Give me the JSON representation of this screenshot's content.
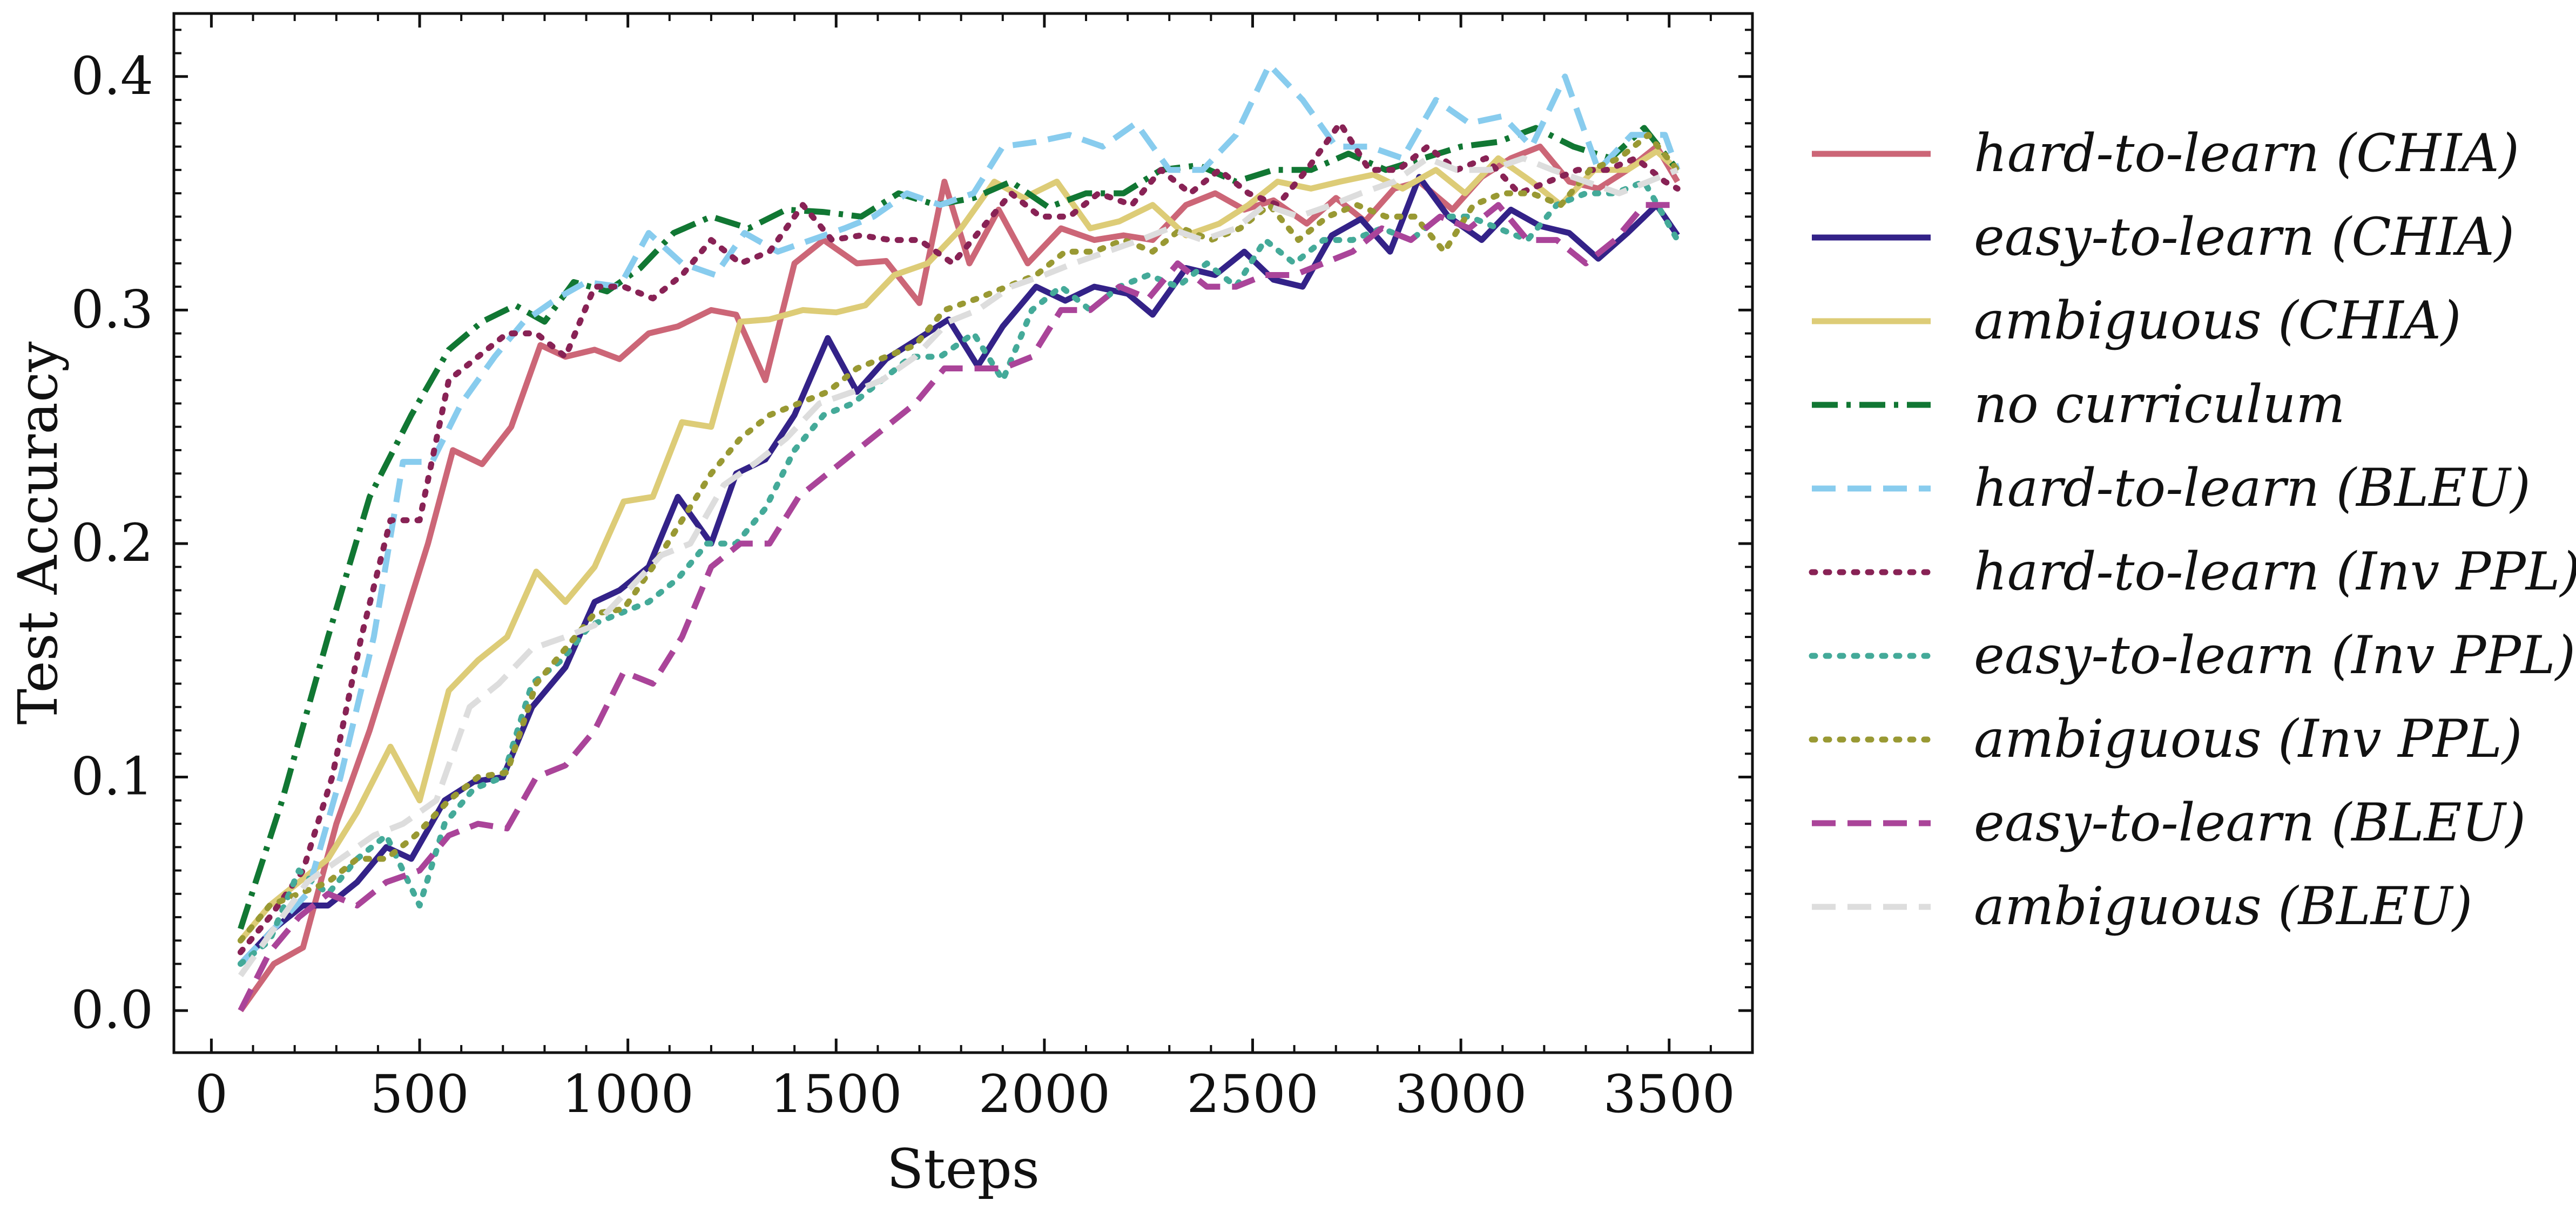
{
  "chart_data": {
    "type": "line",
    "xlabel": "Steps",
    "ylabel": "Test Accuracy",
    "xlim": [
      -90,
      3700
    ],
    "ylim": [
      -0.018,
      0.427
    ],
    "x_ticks": [
      0,
      500,
      1000,
      1500,
      2000,
      2500,
      3000,
      3500
    ],
    "x_tick_labels": [
      "0",
      "500",
      "1000",
      "1500",
      "2000",
      "2500",
      "3000",
      "3500"
    ],
    "y_ticks": [
      0.0,
      0.1,
      0.2,
      0.3,
      0.4
    ],
    "y_tick_labels": [
      "0.0",
      "0.1",
      "0.2",
      "0.3",
      "0.4"
    ],
    "grid": false,
    "legend_position": "right, outside plot",
    "series": [
      {
        "name": "hard-to-learn (CHIA)",
        "color": "#CC6677",
        "dash": "solid",
        "x": [
          70,
          150,
          220,
          300,
          380,
          450,
          520,
          580,
          650,
          720,
          790,
          850,
          920,
          980,
          1050,
          1120,
          1200,
          1260,
          1330,
          1400,
          1470,
          1550,
          1620,
          1700,
          1760,
          1820,
          1890,
          1960,
          2040,
          2120,
          2190,
          2260,
          2340,
          2410,
          2480,
          2550,
          2630,
          2700,
          2770,
          2840,
          2900,
          2980,
          3050,
          3120,
          3190,
          3260,
          3330,
          3400,
          3470,
          3520
        ],
        "y": [
          0.0,
          0.02,
          0.027,
          0.08,
          0.12,
          0.16,
          0.2,
          0.24,
          0.234,
          0.25,
          0.285,
          0.28,
          0.283,
          0.279,
          0.29,
          0.293,
          0.3,
          0.298,
          0.27,
          0.32,
          0.33,
          0.32,
          0.321,
          0.303,
          0.355,
          0.32,
          0.343,
          0.32,
          0.335,
          0.33,
          0.332,
          0.33,
          0.345,
          0.35,
          0.343,
          0.347,
          0.337,
          0.348,
          0.338,
          0.352,
          0.355,
          0.343,
          0.357,
          0.365,
          0.37,
          0.355,
          0.352,
          0.36,
          0.37,
          0.355
        ]
      },
      {
        "name": "easy-to-learn (CHIA)",
        "color": "#332288",
        "dash": "solid",
        "x": [
          70,
          150,
          220,
          280,
          350,
          420,
          480,
          560,
          630,
          700,
          770,
          850,
          920,
          980,
          1050,
          1120,
          1200,
          1260,
          1330,
          1400,
          1480,
          1550,
          1620,
          1700,
          1770,
          1840,
          1900,
          1980,
          2050,
          2120,
          2200,
          2260,
          2340,
          2410,
          2480,
          2550,
          2620,
          2690,
          2760,
          2830,
          2900,
          2970,
          3050,
          3120,
          3190,
          3260,
          3330,
          3400,
          3470,
          3520
        ],
        "y": [
          0.02,
          0.035,
          0.045,
          0.045,
          0.055,
          0.07,
          0.065,
          0.09,
          0.098,
          0.1,
          0.13,
          0.147,
          0.175,
          0.18,
          0.19,
          0.22,
          0.2,
          0.23,
          0.236,
          0.255,
          0.288,
          0.265,
          0.279,
          0.288,
          0.296,
          0.276,
          0.293,
          0.31,
          0.304,
          0.31,
          0.307,
          0.298,
          0.318,
          0.315,
          0.325,
          0.313,
          0.31,
          0.332,
          0.339,
          0.325,
          0.357,
          0.34,
          0.33,
          0.343,
          0.336,
          0.333,
          0.322,
          0.333,
          0.345,
          0.332
        ]
      },
      {
        "name": "ambiguous (CHIA)",
        "color": "#DDCC77",
        "dash": "solid",
        "x": [
          70,
          140,
          210,
          280,
          350,
          430,
          500,
          570,
          640,
          710,
          780,
          850,
          920,
          990,
          1060,
          1130,
          1200,
          1270,
          1340,
          1420,
          1500,
          1570,
          1640,
          1720,
          1800,
          1880,
          1950,
          2030,
          2110,
          2180,
          2260,
          2340,
          2420,
          2490,
          2560,
          2640,
          2710,
          2790,
          2860,
          2940,
          3010,
          3090,
          3170,
          3240,
          3320,
          3400,
          3470,
          3520
        ],
        "y": [
          0.03,
          0.045,
          0.055,
          0.065,
          0.085,
          0.113,
          0.09,
          0.137,
          0.15,
          0.16,
          0.188,
          0.175,
          0.19,
          0.218,
          0.22,
          0.252,
          0.25,
          0.295,
          0.296,
          0.3,
          0.299,
          0.302,
          0.315,
          0.32,
          0.335,
          0.355,
          0.348,
          0.355,
          0.335,
          0.338,
          0.345,
          0.332,
          0.337,
          0.345,
          0.355,
          0.352,
          0.355,
          0.358,
          0.352,
          0.36,
          0.35,
          0.365,
          0.355,
          0.345,
          0.36,
          0.36,
          0.368,
          0.36
        ]
      },
      {
        "name": "no curriculum",
        "color": "#117733",
        "dash": "dashdot",
        "x": [
          70,
          170,
          280,
          380,
          480,
          570,
          650,
          730,
          800,
          870,
          950,
          1030,
          1110,
          1200,
          1290,
          1380,
          1470,
          1560,
          1650,
          1740,
          1830,
          1920,
          2010,
          2100,
          2190,
          2280,
          2370,
          2460,
          2550,
          2640,
          2730,
          2820,
          2910,
          3000,
          3090,
          3180,
          3270,
          3360,
          3440,
          3520
        ],
        "y": [
          0.035,
          0.09,
          0.16,
          0.22,
          0.255,
          0.283,
          0.295,
          0.302,
          0.295,
          0.312,
          0.308,
          0.318,
          0.333,
          0.34,
          0.335,
          0.343,
          0.342,
          0.34,
          0.35,
          0.345,
          0.348,
          0.355,
          0.344,
          0.35,
          0.35,
          0.36,
          0.362,
          0.355,
          0.36,
          0.36,
          0.367,
          0.36,
          0.365,
          0.37,
          0.372,
          0.378,
          0.37,
          0.365,
          0.378,
          0.36
        ]
      },
      {
        "name": "hard-to-learn (BLEU)",
        "color": "#88CCEE",
        "dash": "dashed",
        "x": [
          70,
          150,
          230,
          310,
          390,
          460,
          530,
          600,
          680,
          750,
          830,
          900,
          980,
          1050,
          1130,
          1210,
          1280,
          1360,
          1440,
          1520,
          1590,
          1670,
          1750,
          1830,
          1900,
          1980,
          2060,
          2140,
          2220,
          2300,
          2380,
          2460,
          2540,
          2620,
          2700,
          2780,
          2860,
          2940,
          3020,
          3100,
          3170,
          3250,
          3330,
          3410,
          3490,
          3520
        ],
        "y": [
          0.02,
          0.035,
          0.05,
          0.1,
          0.16,
          0.235,
          0.235,
          0.26,
          0.28,
          0.295,
          0.305,
          0.312,
          0.31,
          0.333,
          0.32,
          0.315,
          0.333,
          0.325,
          0.33,
          0.335,
          0.34,
          0.35,
          0.345,
          0.35,
          0.37,
          0.372,
          0.375,
          0.37,
          0.38,
          0.36,
          0.36,
          0.375,
          0.405,
          0.39,
          0.37,
          0.37,
          0.365,
          0.39,
          0.38,
          0.383,
          0.37,
          0.4,
          0.36,
          0.375,
          0.375,
          0.36
        ]
      },
      {
        "name": "hard-to-learn (Inv PPL)",
        "color": "#882255",
        "dash": "dotted",
        "x": [
          70,
          140,
          220,
          290,
          360,
          430,
          500,
          570,
          640,
          710,
          780,
          850,
          920,
          990,
          1060,
          1130,
          1200,
          1270,
          1340,
          1420,
          1490,
          1560,
          1630,
          1700,
          1780,
          1850,
          1920,
          1990,
          2060,
          2130,
          2210,
          2280,
          2350,
          2420,
          2490,
          2560,
          2630,
          2710,
          2780,
          2850,
          2920,
          2990,
          3060,
          3140,
          3210,
          3280,
          3350,
          3420,
          3490,
          3520
        ],
        "y": [
          0.025,
          0.04,
          0.06,
          0.1,
          0.16,
          0.21,
          0.21,
          0.27,
          0.28,
          0.29,
          0.29,
          0.28,
          0.31,
          0.31,
          0.305,
          0.315,
          0.33,
          0.32,
          0.325,
          0.345,
          0.33,
          0.332,
          0.33,
          0.33,
          0.32,
          0.335,
          0.35,
          0.34,
          0.34,
          0.35,
          0.345,
          0.36,
          0.35,
          0.36,
          0.35,
          0.345,
          0.36,
          0.38,
          0.36,
          0.36,
          0.37,
          0.36,
          0.365,
          0.35,
          0.355,
          0.36,
          0.36,
          0.365,
          0.355,
          0.352
        ]
      },
      {
        "name": "easy-to-learn (Inv PPL)",
        "color": "#44AA99",
        "dash": "dotted",
        "x": [
          70,
          140,
          210,
          280,
          350,
          420,
          500,
          560,
          630,
          700,
          770,
          840,
          910,
          980,
          1050,
          1120,
          1190,
          1260,
          1330,
          1400,
          1470,
          1540,
          1610,
          1680,
          1750,
          1830,
          1900,
          1970,
          2040,
          2110,
          2180,
          2250,
          2320,
          2390,
          2460,
          2530,
          2600,
          2670,
          2740,
          2810,
          2880,
          2950,
          3020,
          3090,
          3160,
          3230,
          3300,
          3370,
          3440,
          3520
        ],
        "y": [
          0.02,
          0.03,
          0.06,
          0.05,
          0.065,
          0.075,
          0.045,
          0.08,
          0.095,
          0.1,
          0.14,
          0.15,
          0.165,
          0.17,
          0.175,
          0.185,
          0.2,
          0.2,
          0.215,
          0.24,
          0.255,
          0.26,
          0.27,
          0.28,
          0.28,
          0.29,
          0.27,
          0.3,
          0.31,
          0.3,
          0.31,
          0.315,
          0.31,
          0.32,
          0.31,
          0.33,
          0.32,
          0.33,
          0.33,
          0.335,
          0.33,
          0.34,
          0.34,
          0.335,
          0.33,
          0.345,
          0.35,
          0.35,
          0.355,
          0.33
        ]
      },
      {
        "name": "ambiguous (Inv PPL)",
        "color": "#999933",
        "dash": "dotted",
        "x": [
          70,
          140,
          210,
          280,
          350,
          420,
          490,
          570,
          640,
          710,
          780,
          850,
          920,
          990,
          1060,
          1130,
          1200,
          1270,
          1340,
          1410,
          1480,
          1550,
          1620,
          1690,
          1760,
          1840,
          1910,
          1980,
          2050,
          2120,
          2190,
          2260,
          2330,
          2400,
          2470,
          2540,
          2610,
          2680,
          2750,
          2820,
          2890,
          2960,
          3030,
          3100,
          3170,
          3240,
          3310,
          3380,
          3450,
          3520
        ],
        "y": [
          0.03,
          0.045,
          0.05,
          0.055,
          0.065,
          0.065,
          0.075,
          0.09,
          0.1,
          0.102,
          0.14,
          0.155,
          0.17,
          0.172,
          0.19,
          0.21,
          0.23,
          0.245,
          0.255,
          0.26,
          0.265,
          0.275,
          0.28,
          0.285,
          0.3,
          0.305,
          0.31,
          0.315,
          0.325,
          0.325,
          0.33,
          0.325,
          0.335,
          0.33,
          0.335,
          0.345,
          0.33,
          0.34,
          0.345,
          0.34,
          0.34,
          0.325,
          0.345,
          0.35,
          0.35,
          0.345,
          0.36,
          0.365,
          0.375,
          0.36
        ]
      },
      {
        "name": "easy-to-learn (BLEU)",
        "color": "#AA4499",
        "dash": "dashed",
        "x": [
          70,
          140,
          210,
          280,
          350,
          420,
          500,
          570,
          640,
          710,
          780,
          850,
          920,
          990,
          1060,
          1130,
          1200,
          1270,
          1340,
          1410,
          1480,
          1550,
          1620,
          1690,
          1760,
          1830,
          1900,
          1970,
          2040,
          2110,
          2180,
          2250,
          2320,
          2390,
          2460,
          2530,
          2600,
          2670,
          2740,
          2810,
          2880,
          2950,
          3020,
          3090,
          3160,
          3230,
          3300,
          3370,
          3440,
          3520
        ],
        "y": [
          0.0,
          0.025,
          0.04,
          0.05,
          0.045,
          0.055,
          0.06,
          0.075,
          0.08,
          0.078,
          0.1,
          0.105,
          0.12,
          0.145,
          0.14,
          0.16,
          0.19,
          0.2,
          0.2,
          0.22,
          0.23,
          0.24,
          0.25,
          0.26,
          0.275,
          0.275,
          0.275,
          0.28,
          0.3,
          0.3,
          0.31,
          0.305,
          0.32,
          0.31,
          0.31,
          0.315,
          0.315,
          0.32,
          0.325,
          0.335,
          0.33,
          0.34,
          0.335,
          0.345,
          0.33,
          0.33,
          0.32,
          0.33,
          0.345,
          0.345
        ]
      },
      {
        "name": "ambiguous (BLEU)",
        "color": "#DDDDDD",
        "dash": "dashed",
        "x": [
          70,
          150,
          230,
          310,
          390,
          460,
          540,
          620,
          690,
          770,
          850,
          920,
          1000,
          1080,
          1150,
          1230,
          1310,
          1380,
          1460,
          1540,
          1610,
          1690,
          1770,
          1840,
          1920,
          2000,
          2070,
          2150,
          2230,
          2300,
          2380,
          2460,
          2530,
          2610,
          2690,
          2760,
          2840,
          2920,
          2990,
          3070,
          3150,
          3220,
          3300,
          3380,
          3450,
          3520
        ],
        "y": [
          0.015,
          0.035,
          0.055,
          0.065,
          0.075,
          0.08,
          0.09,
          0.13,
          0.14,
          0.155,
          0.16,
          0.165,
          0.18,
          0.195,
          0.2,
          0.225,
          0.235,
          0.245,
          0.26,
          0.265,
          0.27,
          0.28,
          0.295,
          0.3,
          0.31,
          0.315,
          0.32,
          0.325,
          0.33,
          0.335,
          0.33,
          0.335,
          0.345,
          0.34,
          0.345,
          0.35,
          0.355,
          0.365,
          0.36,
          0.36,
          0.365,
          0.36,
          0.355,
          0.35,
          0.355,
          0.36
        ]
      }
    ]
  }
}
